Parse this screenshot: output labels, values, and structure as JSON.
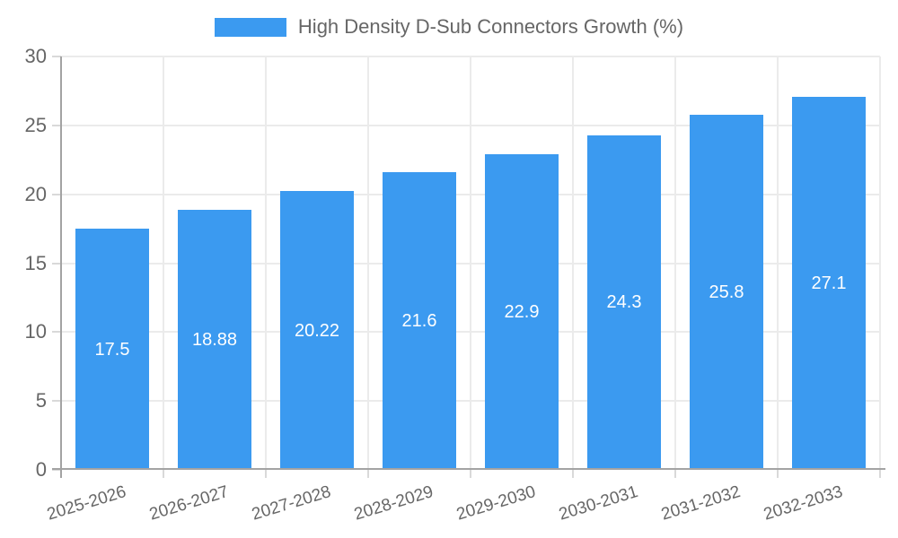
{
  "chart_data": {
    "type": "bar",
    "title": "High Density D-Sub Connectors Growth (%)",
    "categories": [
      "2025-2026",
      "2026-2027",
      "2027-2028",
      "2028-2029",
      "2029-2030",
      "2030-2031",
      "2031-2032",
      "2032-2033"
    ],
    "values": [
      17.5,
      18.88,
      20.22,
      21.6,
      22.9,
      24.3,
      25.8,
      27.1
    ],
    "value_labels": [
      "17.5",
      "18.88",
      "20.22",
      "21.6",
      "22.9",
      "24.3",
      "25.8",
      "27.1"
    ],
    "xlabel": "",
    "ylabel": "",
    "ylim": [
      0,
      30
    ],
    "yticks": [
      0,
      5,
      10,
      15,
      20,
      25,
      30
    ],
    "grid": true,
    "legend_position": "top",
    "x_label_rotation_deg": -17
  },
  "colors": {
    "bar": "#3b9af0",
    "grid": "#ebebeb",
    "axis": "#a3a3a3",
    "tick": "#d9d9d9",
    "label_text": "#666666",
    "bar_label_text": "#ffffff",
    "background": "#ffffff"
  }
}
